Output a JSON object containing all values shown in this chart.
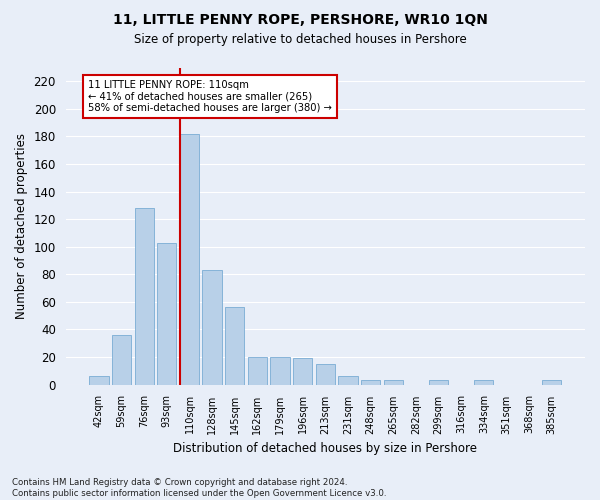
{
  "title": "11, LITTLE PENNY ROPE, PERSHORE, WR10 1QN",
  "subtitle": "Size of property relative to detached houses in Pershore",
  "xlabel": "Distribution of detached houses by size in Pershore",
  "ylabel": "Number of detached properties",
  "bar_labels": [
    "42sqm",
    "59sqm",
    "76sqm",
    "93sqm",
    "110sqm",
    "128sqm",
    "145sqm",
    "162sqm",
    "179sqm",
    "196sqm",
    "213sqm",
    "231sqm",
    "248sqm",
    "265sqm",
    "282sqm",
    "299sqm",
    "316sqm",
    "334sqm",
    "351sqm",
    "368sqm",
    "385sqm"
  ],
  "bar_values": [
    6,
    36,
    128,
    103,
    182,
    83,
    56,
    20,
    20,
    19,
    15,
    6,
    3,
    3,
    0,
    3,
    0,
    3,
    0,
    0,
    3
  ],
  "bar_color": "#b8d0e8",
  "bar_edge_color": "#7aacd4",
  "highlight_index": 4,
  "highlight_color": "#cc0000",
  "annotation_text": "11 LITTLE PENNY ROPE: 110sqm\n← 41% of detached houses are smaller (265)\n58% of semi-detached houses are larger (380) →",
  "annotation_box_color": "#ffffff",
  "annotation_box_edge": "#cc0000",
  "footnote": "Contains HM Land Registry data © Crown copyright and database right 2024.\nContains public sector information licensed under the Open Government Licence v3.0.",
  "ylim": [
    0,
    230
  ],
  "yticks": [
    0,
    20,
    40,
    60,
    80,
    100,
    120,
    140,
    160,
    180,
    200,
    220
  ],
  "background_color": "#e8eef8",
  "grid_color": "#ffffff",
  "figwidth": 6.0,
  "figheight": 5.0
}
